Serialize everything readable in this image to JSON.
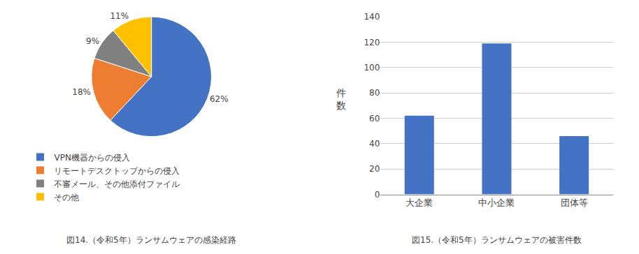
{
  "chart_data": [
    {
      "type": "pie",
      "title": "図14.（令和5年）ランサムウェアの感染経路",
      "categories": [
        "VPN機器からの侵入",
        "リモートデスクトップからの侵入",
        "不審メール、その他添付ファイル",
        "その他"
      ],
      "values": [
        62,
        18,
        9,
        11
      ],
      "value_labels": [
        "62%",
        "18%",
        "9%",
        "11%"
      ],
      "colors": [
        "#4472C4",
        "#ED7D31",
        "#808080",
        "#FFC000"
      ],
      "data_labels": true,
      "legend": "bottom"
    },
    {
      "type": "bar",
      "title": "図15.（令和5年）ランサムウェアの被害件数",
      "categories": [
        "大企業",
        "中小企業",
        "団体等"
      ],
      "values": [
        62,
        119,
        46
      ],
      "color": "#4472C4",
      "ylabel": "件\n数",
      "ylim": [
        0,
        140
      ],
      "yticks": [
        0,
        20,
        40,
        60,
        80,
        100,
        120,
        140
      ],
      "grid": true
    }
  ]
}
